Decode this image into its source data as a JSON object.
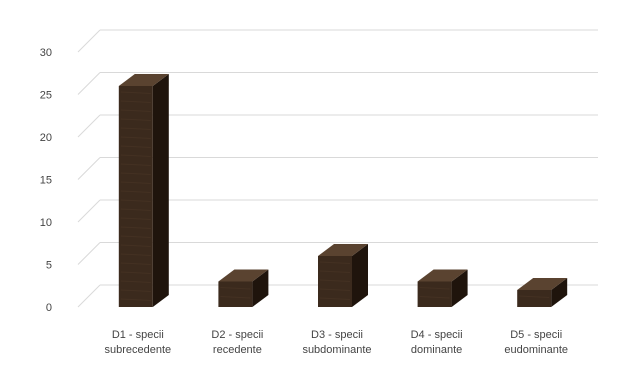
{
  "chart_data": {
    "type": "bar",
    "style": "3d-column",
    "categories": [
      [
        "D1 - specii",
        "subrecedente"
      ],
      [
        "D2 - specii",
        "recedente"
      ],
      [
        "D3 - specii",
        "subdominante"
      ],
      [
        "D4 - specii",
        "dominante"
      ],
      [
        "D5 - specii",
        "eudominante"
      ]
    ],
    "values": [
      26,
      3,
      6,
      3,
      2
    ],
    "ylim": [
      0,
      30
    ],
    "yticks": [
      0,
      5,
      10,
      15,
      20,
      25,
      30
    ],
    "grid": true,
    "legend": "none",
    "title": "",
    "xlabel": "",
    "ylabel": "",
    "colors": {
      "bar_front": "#3b2a1d",
      "bar_side": "#1f140c",
      "bar_top": "#5a4330",
      "gridline": "#d9d9d9",
      "text": "#444444"
    }
  }
}
